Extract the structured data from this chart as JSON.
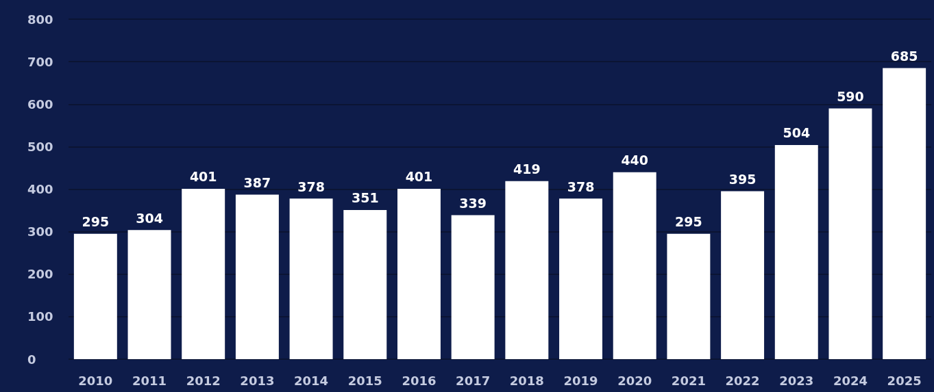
{
  "chart_data": {
    "type": "bar",
    "categories": [
      "2010",
      "2011",
      "2012",
      "2013",
      "2014",
      "2015",
      "2016",
      "2017",
      "2018",
      "2019",
      "2020",
      "2021",
      "2022",
      "2023",
      "2024",
      "2025"
    ],
    "values": [
      295,
      304,
      401,
      387,
      378,
      351,
      401,
      339,
      419,
      378,
      440,
      295,
      395,
      504,
      590,
      685
    ],
    "color": "#ffffff",
    "ylim": [
      0,
      800
    ],
    "yticks": [
      0,
      100,
      200,
      300,
      400,
      500,
      600,
      700,
      800
    ],
    "grid": "y",
    "data_labels": true
  }
}
